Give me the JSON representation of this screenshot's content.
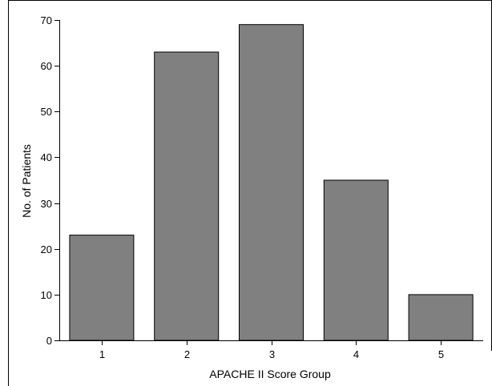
{
  "chart_data": {
    "type": "bar",
    "categories": [
      "1",
      "2",
      "3",
      "4",
      "5"
    ],
    "values": [
      23,
      63,
      69,
      35,
      10
    ],
    "title": "",
    "xlabel": "APACHE II Score Group",
    "ylabel": "No. of Patients",
    "ylim": [
      0,
      70
    ],
    "yticks": [
      0,
      10,
      20,
      30,
      40,
      50,
      60,
      70
    ],
    "grid": false,
    "bar_color": "#808080",
    "bar_edge_color": "#000000"
  }
}
